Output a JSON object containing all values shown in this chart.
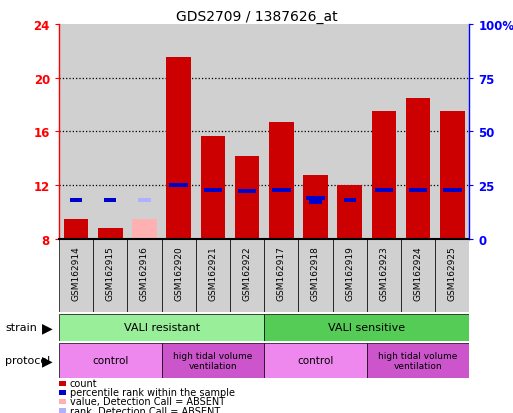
{
  "title": "GDS2709 / 1387626_at",
  "samples": [
    "GSM162914",
    "GSM162915",
    "GSM162916",
    "GSM162920",
    "GSM162921",
    "GSM162922",
    "GSM162917",
    "GSM162918",
    "GSM162919",
    "GSM162923",
    "GSM162924",
    "GSM162925"
  ],
  "count_values": [
    9.5,
    8.8,
    null,
    21.5,
    15.7,
    14.2,
    16.7,
    12.8,
    12.0,
    17.5,
    18.5,
    17.5
  ],
  "count_absent": [
    null,
    null,
    9.5,
    null,
    null,
    null,
    null,
    null,
    null,
    null,
    null,
    null
  ],
  "rank_values": [
    null,
    null,
    null,
    12.0,
    11.65,
    11.55,
    11.65,
    11.05,
    null,
    11.65,
    11.65,
    11.65
  ],
  "rank_absent": [
    null,
    null,
    null,
    null,
    null,
    null,
    null,
    null,
    null,
    null,
    null,
    null
  ],
  "percentile_blue": [
    10.9,
    10.9,
    null,
    null,
    null,
    null,
    null,
    10.75,
    10.9,
    null,
    null,
    null
  ],
  "percentile_blue_absent": [
    null,
    null,
    10.9,
    null,
    null,
    null,
    null,
    null,
    null,
    null,
    null,
    null
  ],
  "ylim": [
    8,
    24
  ],
  "y_ticks_left": [
    8,
    12,
    16,
    20,
    24
  ],
  "y_ticks_right_vals": [
    8,
    12,
    16,
    20,
    24
  ],
  "y_ticks_right_labels": [
    "0",
    "25",
    "50",
    "75",
    "100%"
  ],
  "bar_color": "#cc0000",
  "rank_color": "#0000cc",
  "absent_bar_color": "#ffb0b0",
  "absent_rank_color": "#b0b0ff",
  "col_bg_color": "#d0d0d0",
  "plot_bg": "#ffffff",
  "gridline_color": "#000000",
  "strain_resistant_color": "#99ee99",
  "strain_sensitive_color": "#55cc55",
  "protocol_control_color": "#ee88ee",
  "protocol_htv_color": "#cc55cc",
  "legend_items": [
    {
      "label": "count",
      "color": "#cc0000"
    },
    {
      "label": "percentile rank within the sample",
      "color": "#0000cc"
    },
    {
      "label": "value, Detection Call = ABSENT",
      "color": "#ffb0b0"
    },
    {
      "label": "rank, Detection Call = ABSENT",
      "color": "#b0b0ff"
    }
  ]
}
